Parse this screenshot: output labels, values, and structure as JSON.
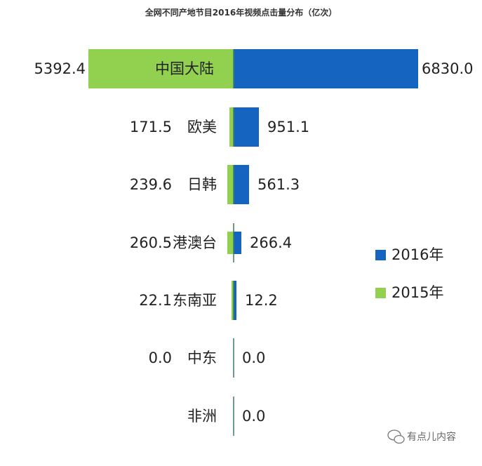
{
  "chart_data": {
    "type": "bar",
    "title": "全网不同产地节目2016年视频点击量分布（亿次）",
    "categories": [
      "中国大陆",
      "欧美",
      "日韩",
      "港澳台",
      "东南亚",
      "中东",
      "非洲"
    ],
    "series": [
      {
        "name": "2015年",
        "color": "#92d050",
        "values": [
          5392.4,
          171.5,
          239.6,
          260.5,
          22.1,
          0.0,
          null
        ]
      },
      {
        "name": "2016年",
        "color": "#1565c0",
        "values": [
          6830.0,
          951.1,
          561.3,
          266.4,
          12.2,
          0.0,
          0.0
        ]
      }
    ],
    "left_labels": [
      "5392.4",
      "171.5",
      "239.6",
      "260.5",
      "22.1",
      "0.0",
      ""
    ],
    "right_labels": [
      "6830.0",
      "951.1",
      "561.3",
      "266.4",
      "12.2",
      "0.0",
      "0.0"
    ],
    "legend": [
      "2016年",
      "2015年"
    ],
    "legend_position": "right",
    "xlabel": "",
    "ylabel": "",
    "grid": false
  },
  "watermark": {
    "text": "有点儿内容",
    "icon": "wechat-icon"
  }
}
